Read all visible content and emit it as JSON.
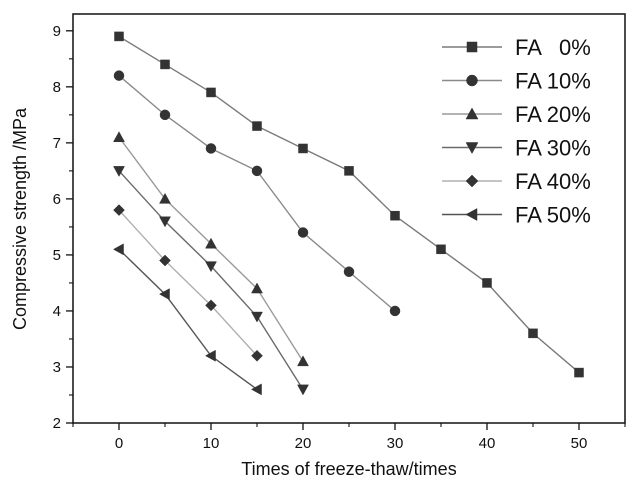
{
  "chart_data": {
    "type": "line",
    "xlabel": "Times of freeze-thaw/times",
    "ylabel": "Compressive strength  /MPa",
    "xlim": [
      -5,
      55
    ],
    "ylim": [
      2,
      9.3
    ],
    "xticks": [
      0,
      10,
      20,
      30,
      40,
      50
    ],
    "yticks": [
      2,
      3,
      4,
      5,
      6,
      7,
      8,
      9
    ],
    "grid": false,
    "legend_position": "top-right",
    "series": [
      {
        "name": "FA   0%",
        "marker": "square",
        "color": "#7a7a7a",
        "x": [
          0,
          5,
          10,
          15,
          20,
          25,
          30,
          35,
          40,
          45,
          50
        ],
        "y": [
          8.9,
          8.4,
          7.9,
          7.3,
          6.9,
          6.5,
          5.7,
          5.1,
          4.5,
          3.6,
          2.9
        ]
      },
      {
        "name": "FA 10%",
        "marker": "circle",
        "color": "#8a8a8a",
        "x": [
          0,
          5,
          10,
          15,
          20,
          25,
          30
        ],
        "y": [
          8.2,
          7.5,
          6.9,
          6.5,
          5.4,
          4.7,
          4.0
        ]
      },
      {
        "name": "FA 20%",
        "marker": "triangle-up",
        "color": "#9a9a9a",
        "x": [
          0,
          5,
          10,
          15,
          20
        ],
        "y": [
          7.1,
          6.0,
          5.2,
          4.4,
          3.1
        ]
      },
      {
        "name": "FA 30%",
        "marker": "triangle-down",
        "color": "#6a6a6a",
        "x": [
          0,
          5,
          10,
          15,
          20
        ],
        "y": [
          6.5,
          5.6,
          4.8,
          3.9,
          2.6
        ]
      },
      {
        "name": "FA 40%",
        "marker": "diamond",
        "color": "#b0b0b0",
        "x": [
          0,
          5,
          10,
          15
        ],
        "y": [
          5.8,
          4.9,
          4.1,
          3.2
        ]
      },
      {
        "name": "FA 50%",
        "marker": "triangle-left",
        "color": "#555555",
        "x": [
          0,
          5,
          10,
          15
        ],
        "y": [
          5.1,
          4.3,
          3.2,
          2.6
        ]
      }
    ]
  }
}
